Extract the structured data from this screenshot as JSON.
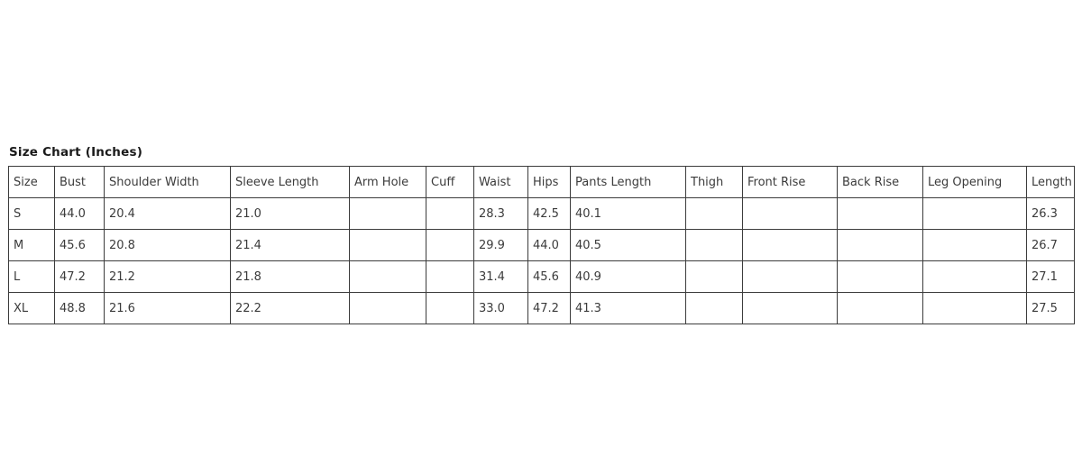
{
  "title": "Size Chart (Inches)",
  "chart_data": {
    "type": "table",
    "title": "Size Chart (Inches)",
    "columns": [
      "Size",
      "Bust",
      "Shoulder Width",
      "Sleeve Length",
      "Arm Hole",
      "Cuff",
      "Waist",
      "Hips",
      "Pants Length",
      "Thigh",
      "Front Rise",
      "Back Rise",
      "Leg Opening",
      "Length"
    ],
    "rows": [
      [
        "S",
        "44.0",
        "20.4",
        "21.0",
        "",
        "",
        "28.3",
        "42.5",
        "40.1",
        "",
        "",
        "",
        "",
        "26.3"
      ],
      [
        "M",
        "45.6",
        "20.8",
        "21.4",
        "",
        "",
        "29.9",
        "44.0",
        "40.5",
        "",
        "",
        "",
        "",
        "26.7"
      ],
      [
        "L",
        "47.2",
        "21.2",
        "21.8",
        "",
        "",
        "31.4",
        "45.6",
        "40.9",
        "",
        "",
        "",
        "",
        "27.1"
      ],
      [
        "XL",
        "48.8",
        "21.6",
        "22.2",
        "",
        "",
        "33.0",
        "47.2",
        "41.3",
        "",
        "",
        "",
        "",
        "27.5"
      ]
    ]
  },
  "colors": {
    "border": "#3c3c3c",
    "text": "#3b3b3b",
    "title_text": "#1a1a1a",
    "background": "#ffffff"
  }
}
